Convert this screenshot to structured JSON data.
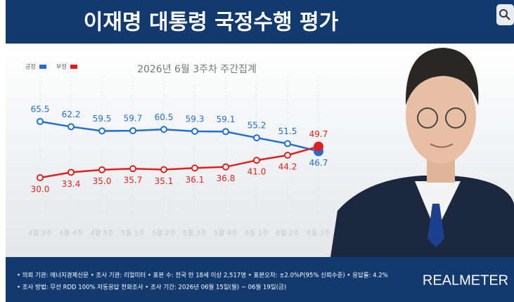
{
  "chart_data": {
    "type": "line",
    "title": "이재명 대통령 국정수행 평가",
    "subtitle": "2026년 6월 3주차 주간집계",
    "categories": [
      "4월 3주",
      "4월 4주",
      "4월 5주",
      "5월 1주",
      "5월 2주",
      "5월 3주",
      "5월 4주",
      "6월 1주",
      "6월 2주",
      "6월 3주"
    ],
    "series": [
      {
        "name": "긍정",
        "color": "#1f6fd6",
        "values": [
          65.5,
          62.2,
          59.5,
          59.7,
          60.5,
          59.3,
          59.1,
          55.2,
          51.5,
          46.7
        ],
        "value_labels": [
          "65.5",
          "62.2",
          "59.5",
          "59.7",
          "60.5",
          "59.3",
          "59.1",
          "55.2",
          "51.5",
          "46.7"
        ]
      },
      {
        "name": "부정",
        "color": "#e0201e",
        "values": [
          30.0,
          33.4,
          35.0,
          35.7,
          35.1,
          36.1,
          36.8,
          41.0,
          44.2,
          49.7
        ],
        "value_labels": [
          "30.0",
          "33.4",
          "35.0",
          "35.7",
          "35.1",
          "36.1",
          "36.8",
          "41.0",
          "44.2",
          "49.7"
        ]
      }
    ],
    "legend": "top-left"
  },
  "footer": {
    "lines": [
      "• 의뢰 기관: 에너지경제신문 • 조사 기관: 리얼미터 • 표본 수: 전국 만 18세 이상 2,517명 • 표본오차: ±2.0%P(95% 신뢰수준) • 응답률: 4.2%",
      "• 조사 방법: 무선 RDD 100% 자동응답 전화조사 • 조사 기간: 2026년 06월 15일(월) ~ 06월 19일(금)"
    ],
    "brand": "REALMETER"
  }
}
